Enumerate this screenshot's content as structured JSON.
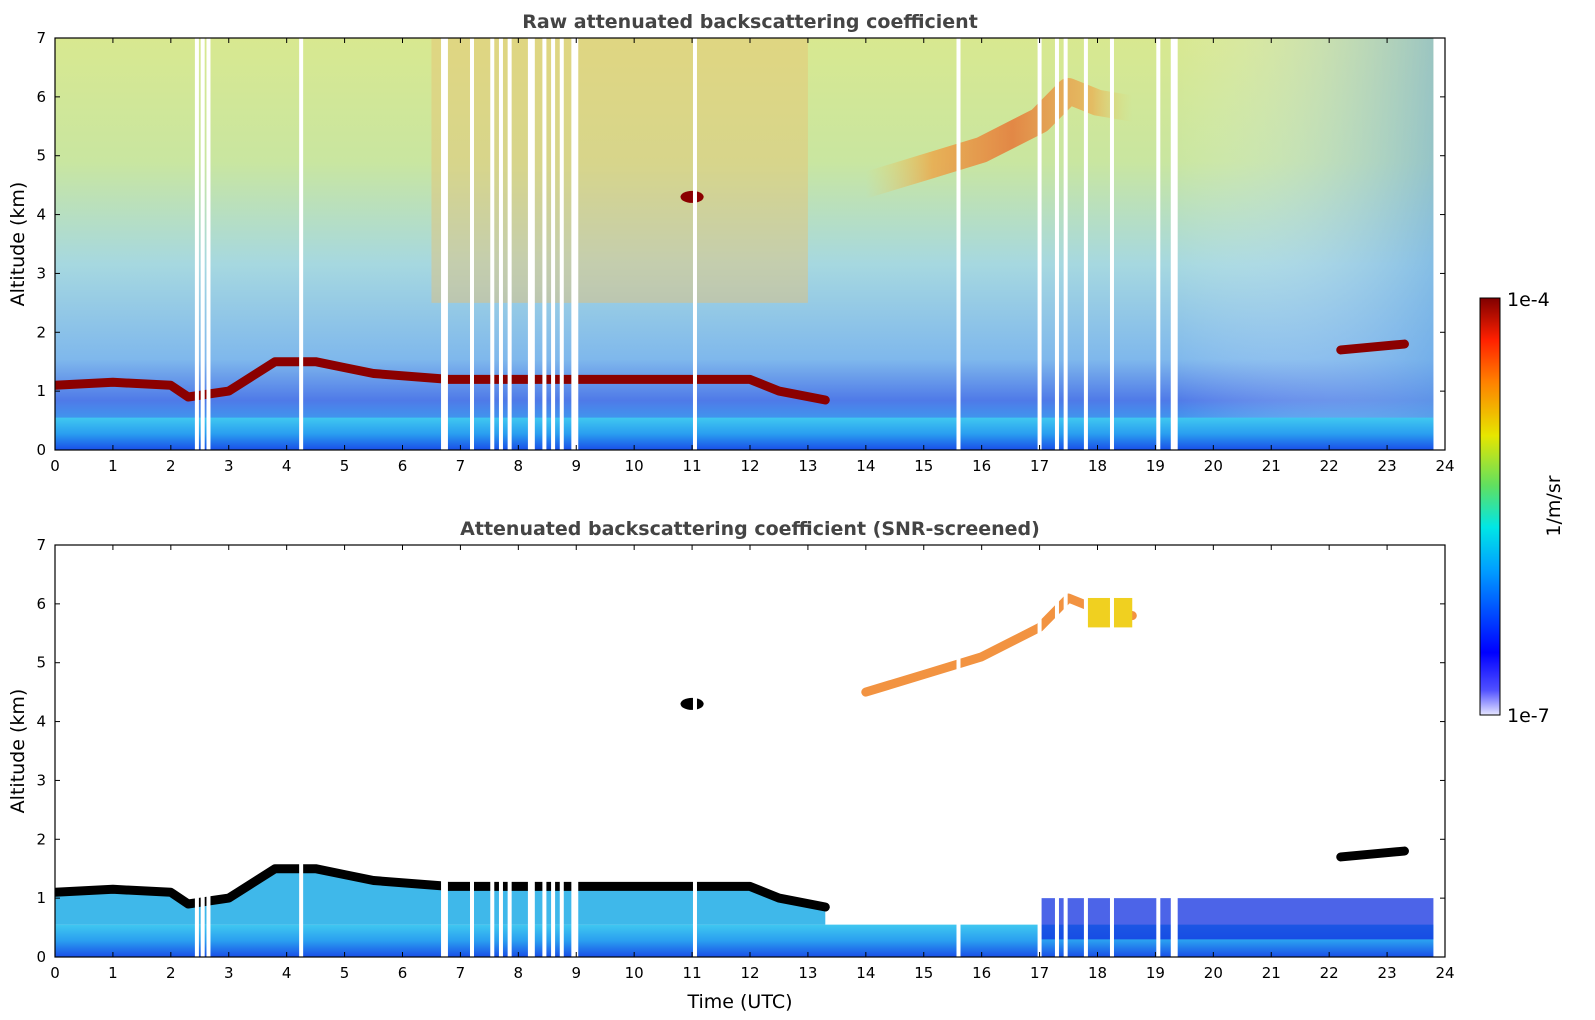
{
  "figure": {
    "xlabel": "Time (UTC)",
    "colorbar": {
      "label": "1/m/sr",
      "max_label": "1e-4",
      "min_label": "1e-7",
      "scale": "log",
      "colormap": "jet"
    },
    "colors": {
      "axis": "#000000",
      "title": "#444444",
      "background": "#ffffff",
      "cloud_core": "#8b0000",
      "screened_cloud_core": "#000000"
    }
  },
  "chart_data": [
    {
      "type": "heatmap",
      "title": "Raw attenuated backscattering coefficient",
      "xlabel": "",
      "ylabel": "Altitude (km)",
      "xlim": [
        0,
        24
      ],
      "ylim": [
        0,
        7
      ],
      "xticks": [
        0,
        1,
        2,
        3,
        4,
        5,
        6,
        7,
        8,
        9,
        10,
        11,
        12,
        13,
        14,
        15,
        16,
        17,
        18,
        19,
        20,
        21,
        22,
        23,
        24
      ],
      "yticks": [
        0,
        1,
        2,
        3,
        4,
        5,
        6,
        7
      ],
      "data_end_hour": 23.8,
      "data_gaps_hours": [
        2.45,
        2.55,
        2.65,
        4.25,
        6.7,
        6.75,
        7.2,
        7.55,
        7.7,
        7.85,
        8.2,
        8.25,
        8.45,
        8.6,
        8.75,
        8.95,
        9.0,
        11.05,
        15.6,
        17.0,
        17.3,
        17.45,
        17.8,
        18.25,
        19.05,
        19.3,
        19.35
      ],
      "features": [
        {
          "name": "boundary-layer cloud top",
          "x": [
            0,
            1,
            2,
            2.3,
            3,
            3.8,
            4.5,
            5,
            5.5,
            6.8,
            8,
            9,
            10,
            11,
            12,
            12.5,
            13.3
          ],
          "y": [
            1.1,
            1.15,
            1.1,
            0.9,
            1.0,
            1.5,
            1.5,
            1.4,
            1.3,
            1.2,
            1.2,
            1.2,
            1.2,
            1.2,
            1.2,
            1.0,
            0.85
          ]
        },
        {
          "name": "isolated cloud",
          "x": [
            10.8,
            11.2
          ],
          "y": [
            4.3,
            4.3
          ]
        },
        {
          "name": "aerosol / cirrus layer",
          "x": [
            14,
            15,
            16,
            17,
            17.5,
            18,
            18.6
          ],
          "y": [
            4.5,
            4.8,
            5.1,
            5.6,
            6.1,
            5.9,
            5.8
          ]
        },
        {
          "name": "elevated cloud",
          "x": [
            22.2,
            23.3
          ],
          "y": [
            1.7,
            1.8
          ]
        }
      ]
    },
    {
      "type": "heatmap",
      "title": "Attenuated backscattering coefficient (SNR-screened)",
      "xlabel": "Time (UTC)",
      "ylabel": "Altitude (km)",
      "xlim": [
        0,
        24
      ],
      "ylim": [
        0,
        7
      ],
      "xticks": [
        0,
        1,
        2,
        3,
        4,
        5,
        6,
        7,
        8,
        9,
        10,
        11,
        12,
        13,
        14,
        15,
        16,
        17,
        18,
        19,
        20,
        21,
        22,
        23,
        24
      ],
      "yticks": [
        0,
        1,
        2,
        3,
        4,
        5,
        6,
        7
      ],
      "data_end_hour": 23.8,
      "features": [
        {
          "name": "boundary-layer cloud top",
          "x": [
            0,
            1,
            2,
            2.3,
            3,
            3.8,
            4.5,
            5,
            5.5,
            6.8,
            8,
            9,
            10,
            11,
            12,
            12.5,
            13.3
          ],
          "y": [
            1.1,
            1.15,
            1.1,
            0.9,
            1.0,
            1.5,
            1.5,
            1.4,
            1.3,
            1.2,
            1.2,
            1.2,
            1.2,
            1.2,
            1.2,
            1.0,
            0.85
          ]
        },
        {
          "name": "isolated cloud",
          "x": [
            10.8,
            11.2
          ],
          "y": [
            4.3,
            4.3
          ]
        },
        {
          "name": "aerosol / cirrus layer",
          "x": [
            14,
            15,
            16,
            17,
            17.5,
            18,
            18.6
          ],
          "y": [
            4.5,
            4.8,
            5.1,
            5.6,
            6.1,
            5.9,
            5.8
          ]
        },
        {
          "name": "elevated cloud",
          "x": [
            22.2,
            23.3
          ],
          "y": [
            1.7,
            1.8
          ]
        }
      ]
    }
  ]
}
